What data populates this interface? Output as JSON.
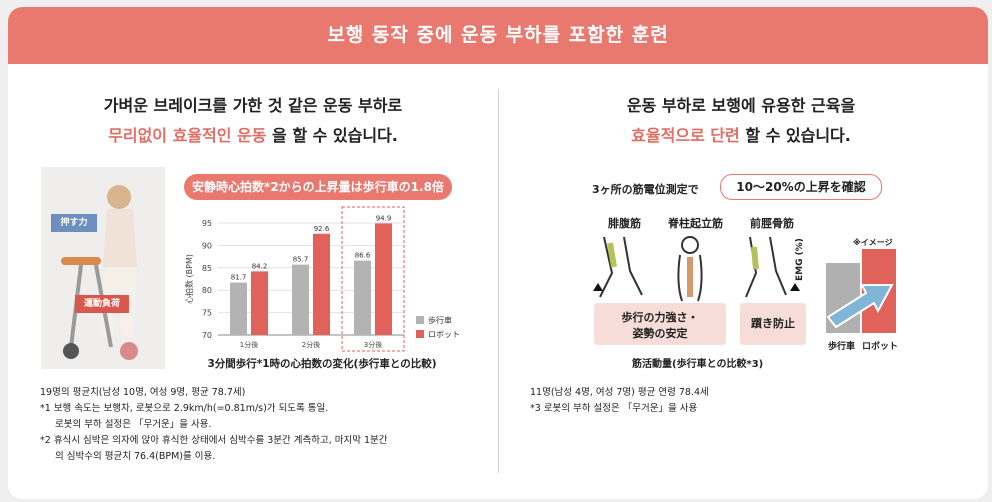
{
  "banner": "보행 동작 중에 운동 부하를 포함한 훈련",
  "left": {
    "line1": "가벼운 브레이크를 가한 것 같은 운동 부하로",
    "line2_hl": "무리없이 효율적인 운동",
    "line2_rest": " 을 할 수 있습니다.",
    "photo_push": "押す力",
    "photo_load": "運動負荷",
    "chart_header": "安静時心拍数*2からの上昇量は歩行車の1.8倍",
    "chart_caption": "3分間歩行*1時の心拍数の変化(歩行車との比較)",
    "notes": [
      "19명의 평균치(남성 10명, 여성 9명, 평균 78.7세)",
      "*1 보행 속도는 보행차, 로봇으로 2.9km/h(=0.81m/s)가 되도록 통일.",
      "로봇의 부하 설정은 「무거운」을 사용.",
      "*2 휴식시 심박은 의자에 앉아 휴식한 상태에서 심박수를 3분간 계측하고, 마지막 1분간",
      "의 심박수의 평균치 76.4(BPM)를 이용."
    ]
  },
  "chart_data": {
    "type": "bar",
    "title": "3分間歩行*1時の心拍数の変化(歩行車との比較)",
    "ylabel": "心拍数 (BPM)",
    "categories": [
      "1分後",
      "2分後",
      "3分後"
    ],
    "ylim": [
      70,
      95
    ],
    "yticks": [
      70,
      75,
      80,
      85,
      90,
      95
    ],
    "series": [
      {
        "name": "歩行車",
        "color": "#b3b3b3",
        "values": [
          81.7,
          85.7,
          86.6
        ]
      },
      {
        "name": "ロボット",
        "color": "#e0625a",
        "values": [
          84.2,
          92.6,
          94.9
        ]
      }
    ],
    "legend": "right",
    "highlight": "3分後"
  },
  "right": {
    "line1": "운동 부하로 보행에 유용한 근육을",
    "line2_hl": "효율적으로 단련",
    "line2_rest": " 할 수 있습니다.",
    "fig_title": "3ヶ所の筋電位測定で",
    "fig_title_box": "10〜20%の上昇を確認",
    "muscles": [
      "腓腹筋",
      "脊柱起立筋",
      "前脛骨筋"
    ],
    "box1_l1": "歩行の力強さ・",
    "box1_l2": "姿勢の安定",
    "box2": "躓き防止",
    "caption": "筋活動量(歩行車との比較*3)",
    "emg_label": "EMG (%)",
    "image_note": "※イメージ",
    "cat1": "歩行車",
    "cat2": "ロボット",
    "notes": [
      "11명(남성 4명, 여성 7명) 평균 연령 78.4세",
      "*3 로봇의 부하 설정은 「무거운」을 사용"
    ]
  }
}
